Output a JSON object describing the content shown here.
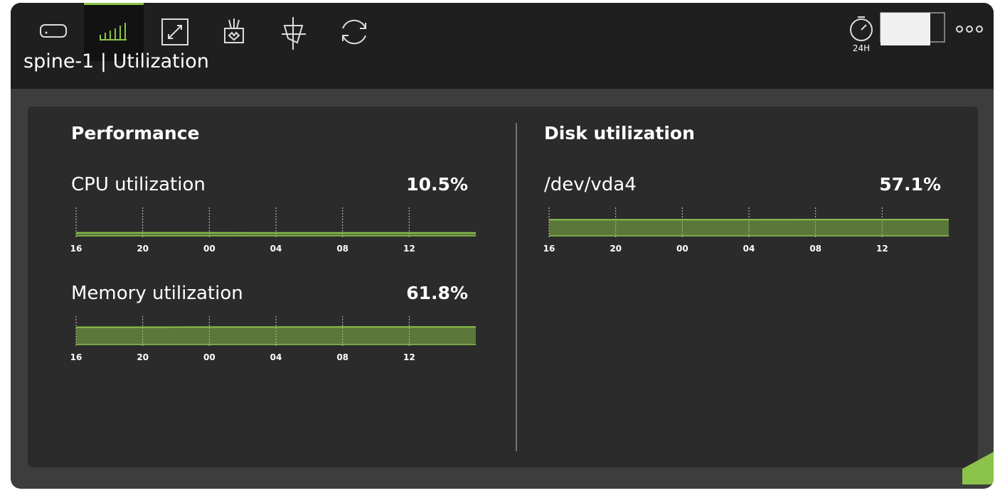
{
  "header": {
    "title": "spine-1 | Utilization",
    "time_range": "24H"
  },
  "sections": [
    {
      "title": "Performance",
      "metrics": [
        {
          "name": "CPU utilization",
          "value": "10.5%",
          "chart": {
            "type": "area",
            "categories": [
              "16",
              "20",
              "00",
              "04",
              "08",
              "12",
              null
            ],
            "values": [
              11,
              11,
              10.8,
              10.6,
              10.5,
              10.5,
              10.5
            ],
            "ylim": [
              0,
              100
            ],
            "color": "#8bc34a"
          }
        },
        {
          "name": "Memory utilization",
          "value": "61.8%",
          "chart": {
            "type": "area",
            "categories": [
              "16",
              "20",
              "00",
              "04",
              "08",
              "12",
              null
            ],
            "values": [
              61,
              61,
              61.5,
              61.5,
              62,
              62,
              61.8
            ],
            "ylim": [
              0,
              100
            ],
            "color": "#8bc34a"
          }
        }
      ]
    },
    {
      "title": "Disk utilization",
      "metrics": [
        {
          "name": "/dev/vda4",
          "value": "57.1%",
          "chart": {
            "type": "area",
            "categories": [
              "16",
              "20",
              "00",
              "04",
              "08",
              "12",
              null
            ],
            "values": [
              57,
              57,
              57,
              57,
              57.1,
              57.1,
              57.1
            ],
            "ylim": [
              0,
              100
            ],
            "color": "#8bc34a"
          }
        }
      ]
    }
  ]
}
